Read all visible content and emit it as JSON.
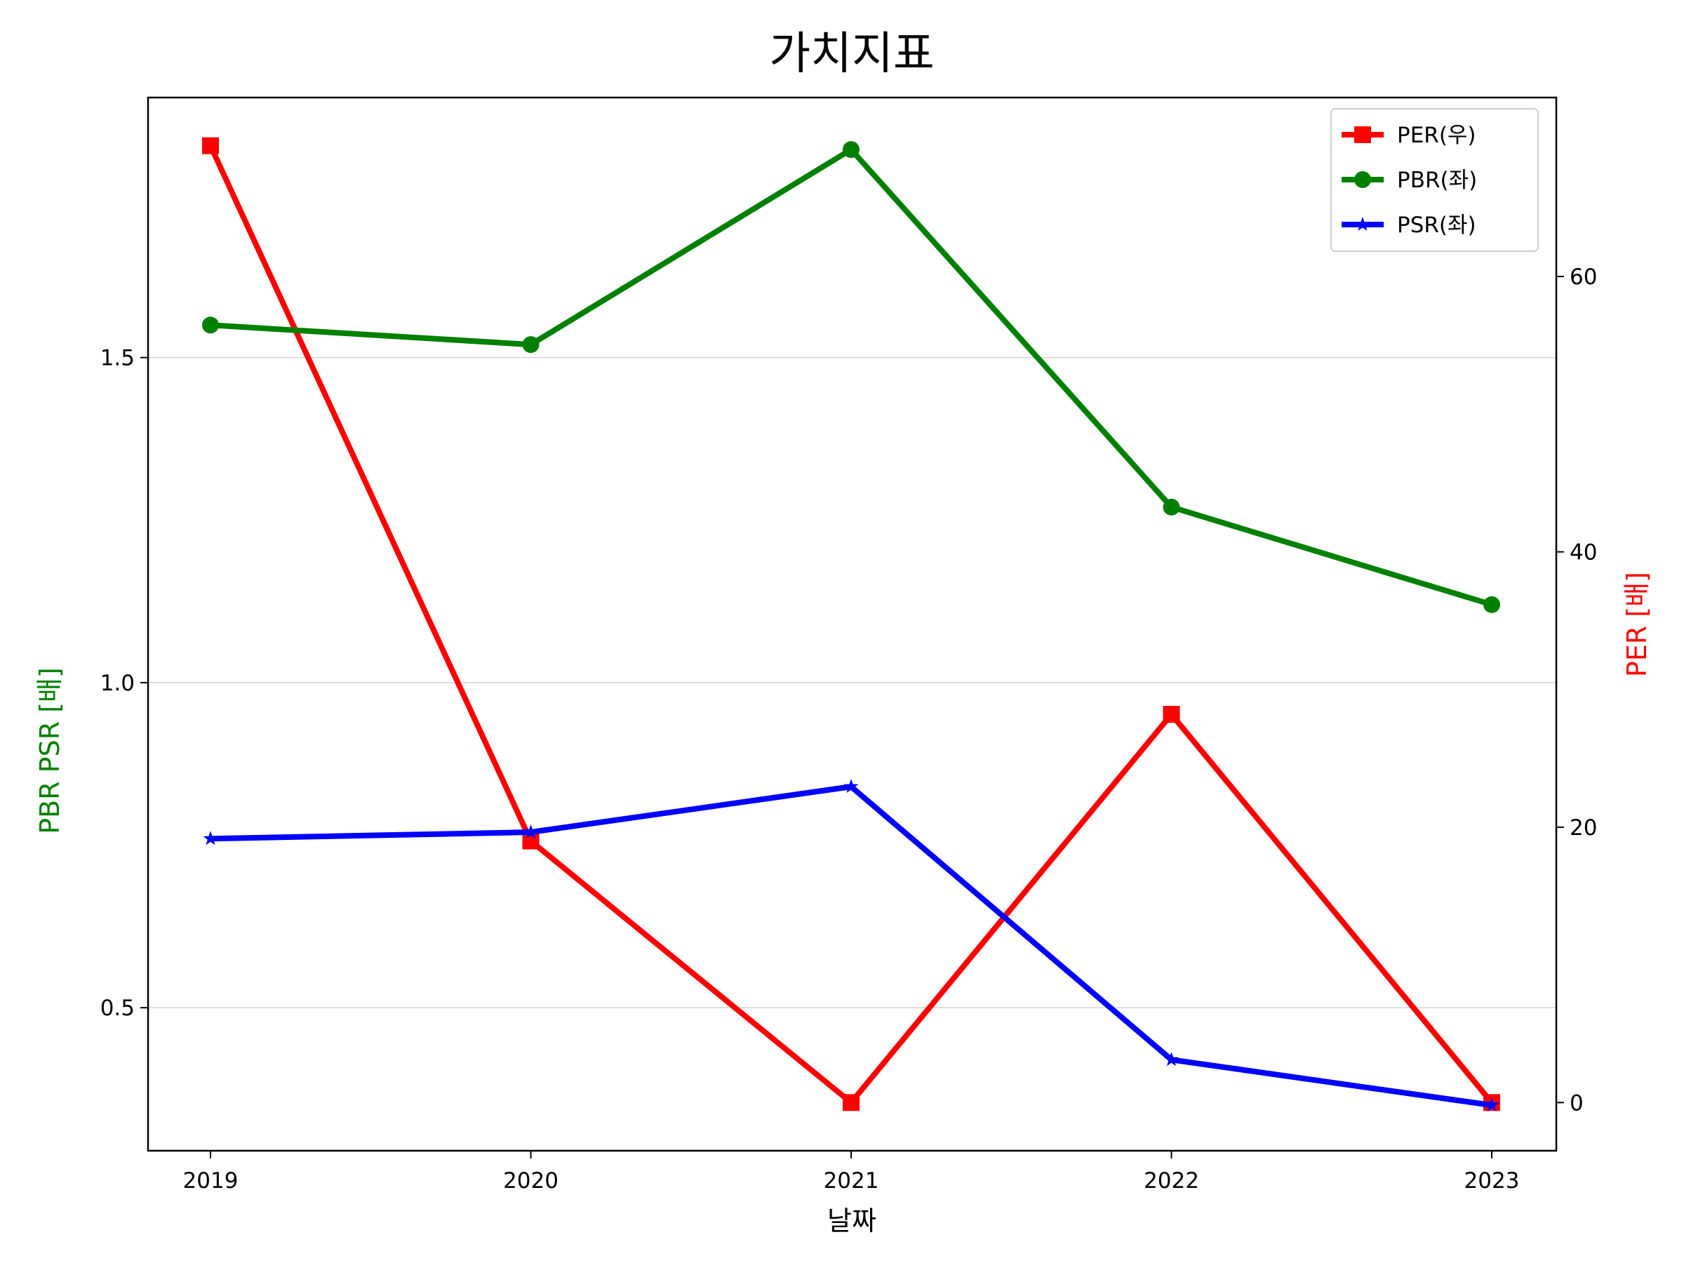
{
  "chart_data": {
    "type": "line",
    "title": "가치지표",
    "xlabel": "날짜",
    "ylabel_left": "PBR PSR [배]",
    "ylabel_right": "PER [배]",
    "ylabel_left_color": "#008000",
    "ylabel_right_color": "#ff0000",
    "categories": [
      "2019",
      "2020",
      "2021",
      "2022",
      "2023"
    ],
    "y_left": {
      "lim": [
        0.28,
        1.9
      ],
      "ticks": [
        "0.5",
        "1.0",
        "1.5"
      ],
      "grid": true
    },
    "y_right": {
      "lim": [
        -3.5,
        73
      ],
      "ticks": [
        "0",
        "20",
        "40",
        "60"
      ]
    },
    "legend_position": "top-right",
    "series": [
      {
        "name": "PER(우)",
        "axis": "right",
        "color": "#ff0000",
        "marker": "square",
        "values": [
          69.5,
          19.0,
          0.0,
          28.2,
          0.0
        ]
      },
      {
        "name": "PBR(좌)",
        "axis": "left",
        "color": "#008000",
        "marker": "circle",
        "values": [
          1.55,
          1.52,
          1.82,
          1.27,
          1.12
        ]
      },
      {
        "name": "PSR(좌)",
        "axis": "left",
        "color": "#0000ff",
        "marker": "star",
        "values": [
          0.76,
          0.77,
          0.84,
          0.42,
          0.35
        ]
      }
    ]
  }
}
